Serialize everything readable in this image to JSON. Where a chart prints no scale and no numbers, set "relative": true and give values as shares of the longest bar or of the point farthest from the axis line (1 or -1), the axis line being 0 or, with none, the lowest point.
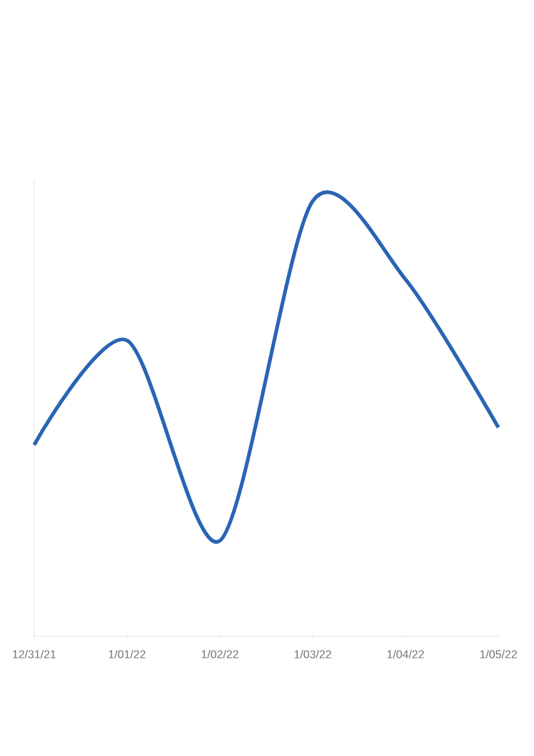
{
  "chart_data": {
    "type": "line",
    "relative": true,
    "categories": [
      "12/31/21",
      "1/01/22",
      "1/02/22",
      "1/03/22",
      "1/04/22",
      "1/05/22"
    ],
    "series": [
      {
        "color": "#2a64b4",
        "values": [
          0.44,
          0.68,
          0.22,
          1,
          0.82,
          0.48
        ]
      }
    ],
    "marker": "none",
    "line_style": "solid"
  }
}
